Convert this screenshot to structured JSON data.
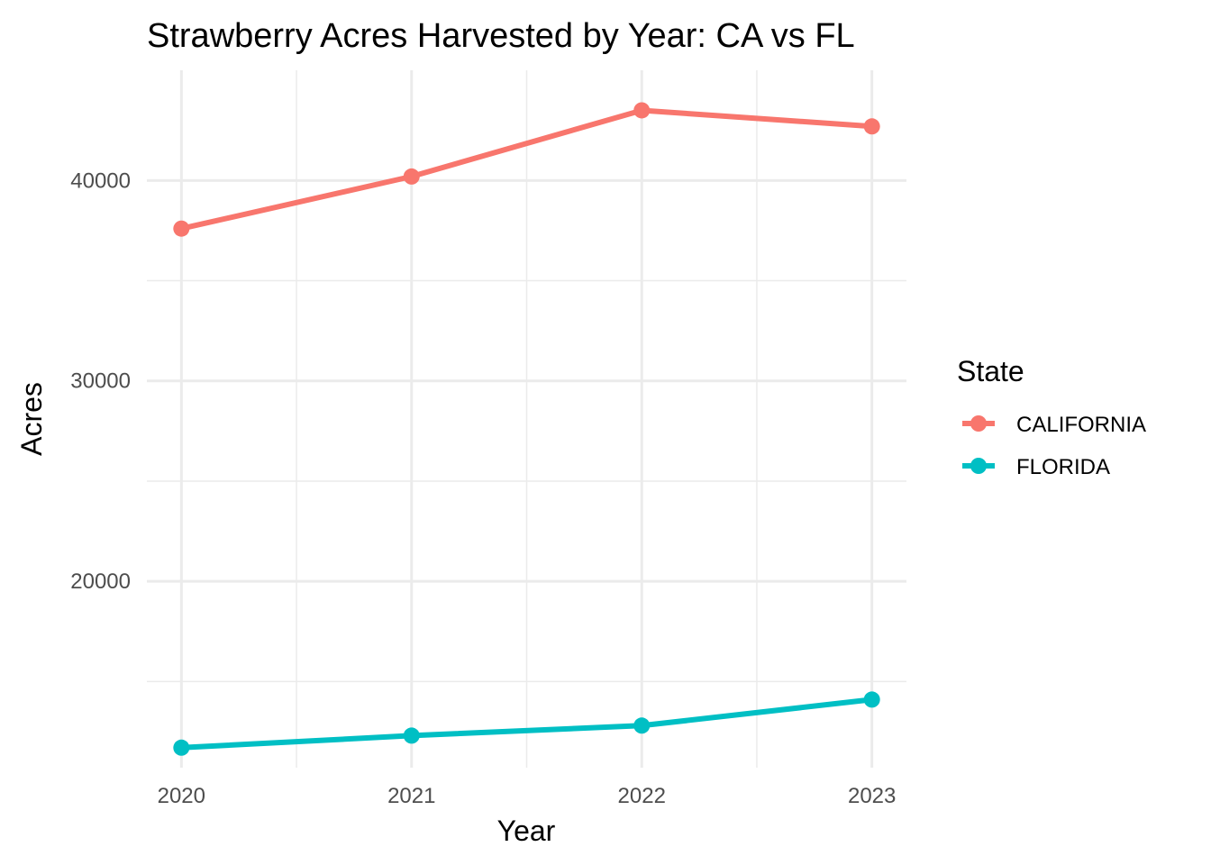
{
  "chart_data": {
    "type": "line",
    "title": "Strawberry Acres Harvested by Year: CA vs FL",
    "xlabel": "Year",
    "ylabel": "Acres",
    "x": [
      2020,
      2021,
      2022,
      2023
    ],
    "x_tick_labels": [
      "2020",
      "2021",
      "2022",
      "2023"
    ],
    "y_ticks": [
      20000,
      30000,
      40000
    ],
    "y_tick_labels": [
      "20000",
      "30000",
      "40000"
    ],
    "xlim": [
      2019.85,
      2023.15
    ],
    "ylim": [
      10700,
      45500
    ],
    "grid": true,
    "legend": {
      "title": "State",
      "position": "right"
    },
    "series": [
      {
        "name": "CALIFORNIA",
        "color": "#F8766D",
        "values": [
          37600,
          40200,
          43500,
          42700
        ]
      },
      {
        "name": "FLORIDA",
        "color": "#00BFC4",
        "values": [
          11700,
          12300,
          12800,
          14100
        ]
      }
    ]
  }
}
